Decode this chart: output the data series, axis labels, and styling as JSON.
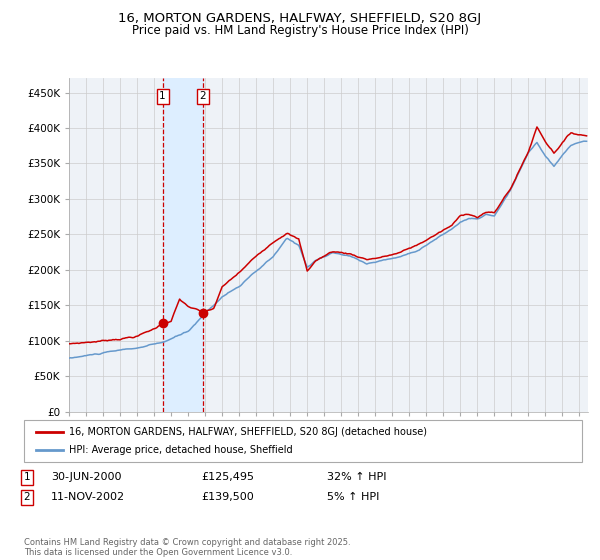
{
  "title_line1": "16, MORTON GARDENS, HALFWAY, SHEFFIELD, S20 8GJ",
  "title_line2": "Price paid vs. HM Land Registry's House Price Index (HPI)",
  "ylabel_ticks": [
    "£0",
    "£50K",
    "£100K",
    "£150K",
    "£200K",
    "£250K",
    "£300K",
    "£350K",
    "£400K",
    "£450K"
  ],
  "ytick_values": [
    0,
    50000,
    100000,
    150000,
    200000,
    250000,
    300000,
    350000,
    400000,
    450000
  ],
  "ylim": [
    0,
    470000
  ],
  "xlim_start": 1995.0,
  "xlim_end": 2025.5,
  "sale1_date": 2000.5,
  "sale1_price": 125495,
  "sale1_label": "1",
  "sale2_date": 2002.87,
  "sale2_price": 139500,
  "sale2_label": "2",
  "legend_property": "16, MORTON GARDENS, HALFWAY, SHEFFIELD, S20 8GJ (detached house)",
  "legend_hpi": "HPI: Average price, detached house, Sheffield",
  "footer": "Contains HM Land Registry data © Crown copyright and database right 2025.\nThis data is licensed under the Open Government Licence v3.0.",
  "property_color": "#cc0000",
  "hpi_color": "#6699cc",
  "shade_color": "#ddeeff",
  "bg_color": "#ffffff",
  "grid_color": "#cccccc",
  "dashed_color": "#cc0000",
  "chart_bg": "#eef2f7"
}
